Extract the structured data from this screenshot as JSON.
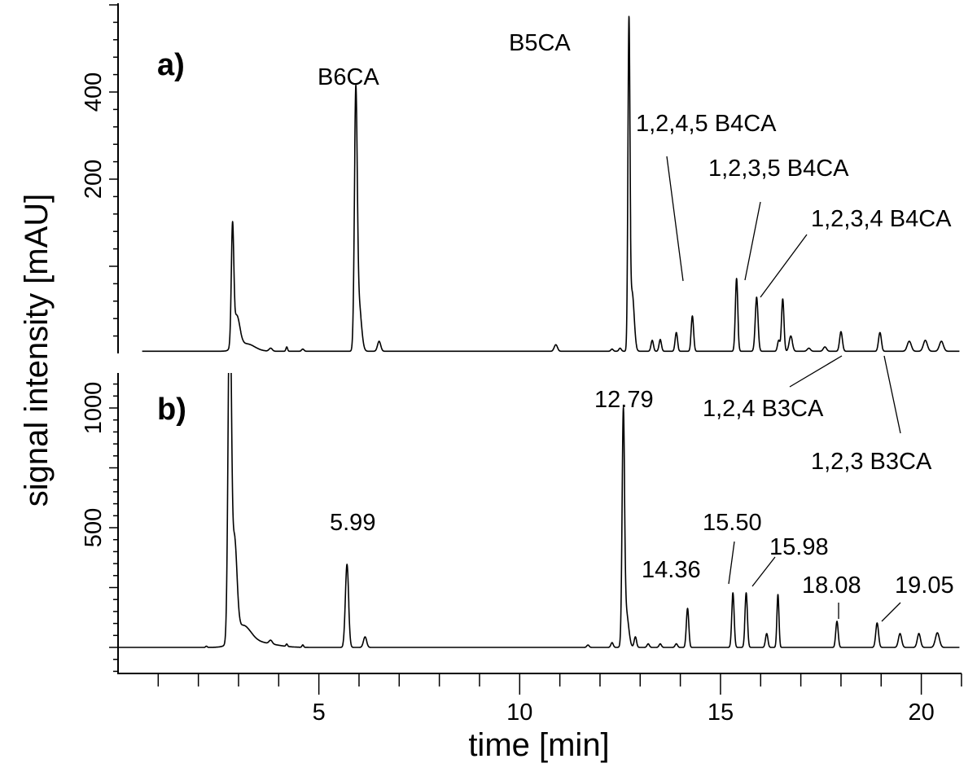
{
  "chart_data": {
    "type": "line",
    "xlabel": "time [min]",
    "ylabel": "signal intensity [mAU]",
    "xlim": [
      0,
      21
    ],
    "x_ticks": {
      "major_step": 5,
      "minor_step": 1,
      "labels": [
        "5",
        "10",
        "15",
        "20"
      ]
    },
    "grid": false,
    "legend": "none",
    "line_color": "#000000",
    "panels": [
      {
        "tag": "a)",
        "ylim": [
          -192,
          602
        ],
        "y_ticks": {
          "major_step": 200,
          "minor_step": 40,
          "labels": [
            "200",
            "400"
          ]
        },
        "baseline": -195,
        "start_time": 0.6,
        "peaks": [
          {
            "t": 2.85,
            "apex": 64,
            "w": 0.03
          },
          {
            "t": 2.95,
            "apex": -120,
            "w": 0.08
          },
          {
            "t": 3.2,
            "apex": -178,
            "w": 0.2
          },
          {
            "t": 3.8,
            "apex": -188,
            "w": 0.04
          },
          {
            "t": 4.2,
            "apex": -185,
            "w": 0.02
          },
          {
            "t": 4.6,
            "apex": -190,
            "w": 0.03
          },
          {
            "t": 5.92,
            "apex": 372,
            "w": 0.035
          },
          {
            "t": 6.0,
            "apex": -90,
            "w": 0.06
          },
          {
            "t": 6.5,
            "apex": -172,
            "w": 0.04
          },
          {
            "t": 10.9,
            "apex": -180,
            "w": 0.04
          },
          {
            "t": 12.3,
            "apex": -190,
            "w": 0.03
          },
          {
            "t": 12.5,
            "apex": -188,
            "w": 0.03
          },
          {
            "t": 12.72,
            "apex": 536,
            "w": 0.025
          },
          {
            "t": 12.8,
            "apex": -60,
            "w": 0.05
          },
          {
            "t": 13.3,
            "apex": -170,
            "w": 0.03
          },
          {
            "t": 13.5,
            "apex": -168,
            "w": 0.03
          },
          {
            "t": 13.9,
            "apex": -152,
            "w": 0.03
          },
          {
            "t": 14.3,
            "apex": -114,
            "w": 0.03
          },
          {
            "t": 15.4,
            "apex": -28,
            "w": 0.03
          },
          {
            "t": 15.9,
            "apex": -71,
            "w": 0.035
          },
          {
            "t": 16.45,
            "apex": -170,
            "w": 0.03
          },
          {
            "t": 16.55,
            "apex": -75,
            "w": 0.03
          },
          {
            "t": 16.75,
            "apex": -160,
            "w": 0.04
          },
          {
            "t": 17.2,
            "apex": -188,
            "w": 0.04
          },
          {
            "t": 17.6,
            "apex": -185,
            "w": 0.04
          },
          {
            "t": 18.0,
            "apex": -150,
            "w": 0.035
          },
          {
            "t": 18.97,
            "apex": -152,
            "w": 0.035
          },
          {
            "t": 19.7,
            "apex": -172,
            "w": 0.05
          },
          {
            "t": 20.1,
            "apex": -170,
            "w": 0.05
          },
          {
            "t": 20.5,
            "apex": -172,
            "w": 0.05
          }
        ],
        "annotations": [
          "B6CA",
          "B5CA",
          "1,2,4,5 B4CA",
          "1,2,3,5 B4CA",
          "1,2,3,4 B4CA",
          "1,2,4 B3CA",
          "1,2,3 B3CA"
        ]
      },
      {
        "tag": "b)",
        "ylim": [
          -109,
          1146
        ],
        "y_ticks": {
          "major_step": 250,
          "minor_step": 50,
          "labels": [
            "500",
            "1000"
          ]
        },
        "baseline": 0,
        "start_time": 0,
        "peaks": [
          {
            "t": 2.2,
            "apex": 5,
            "w": 0.02
          },
          {
            "t": 2.78,
            "apex": 1500,
            "w": 0.04
          },
          {
            "t": 2.9,
            "apex": 400,
            "w": 0.06
          },
          {
            "t": 3.1,
            "apex": 80,
            "w": 0.2
          },
          {
            "t": 3.5,
            "apex": 20,
            "w": 0.4
          },
          {
            "t": 3.8,
            "apex": 15,
            "w": 0.04
          },
          {
            "t": 4.2,
            "apex": 10,
            "w": 0.02
          },
          {
            "t": 4.6,
            "apex": 10,
            "w": 0.02
          },
          {
            "t": 5.7,
            "apex": 347,
            "w": 0.04
          },
          {
            "t": 6.15,
            "apex": 44,
            "w": 0.04
          },
          {
            "t": 11.7,
            "apex": 10,
            "w": 0.03
          },
          {
            "t": 12.3,
            "apex": 20,
            "w": 0.03
          },
          {
            "t": 12.58,
            "apex": 925,
            "w": 0.03
          },
          {
            "t": 12.65,
            "apex": 150,
            "w": 0.06
          },
          {
            "t": 12.88,
            "apex": 44,
            "w": 0.03
          },
          {
            "t": 13.2,
            "apex": 15,
            "w": 0.03
          },
          {
            "t": 13.5,
            "apex": 15,
            "w": 0.03
          },
          {
            "t": 13.9,
            "apex": 15,
            "w": 0.03
          },
          {
            "t": 14.18,
            "apex": 163,
            "w": 0.03
          },
          {
            "t": 15.31,
            "apex": 228,
            "w": 0.03
          },
          {
            "t": 15.64,
            "apex": 228,
            "w": 0.03
          },
          {
            "t": 16.15,
            "apex": 58,
            "w": 0.03
          },
          {
            "t": 16.43,
            "apex": 221,
            "w": 0.025
          },
          {
            "t": 17.9,
            "apex": 109,
            "w": 0.03
          },
          {
            "t": 18.9,
            "apex": 102,
            "w": 0.035
          },
          {
            "t": 19.47,
            "apex": 58,
            "w": 0.04
          },
          {
            "t": 19.94,
            "apex": 58,
            "w": 0.04
          },
          {
            "t": 20.4,
            "apex": 61,
            "w": 0.05
          }
        ],
        "annotations": [
          "5.99",
          "12.79",
          "14.36",
          "15.50",
          "15.98",
          "18.08",
          "19.05"
        ]
      }
    ]
  }
}
